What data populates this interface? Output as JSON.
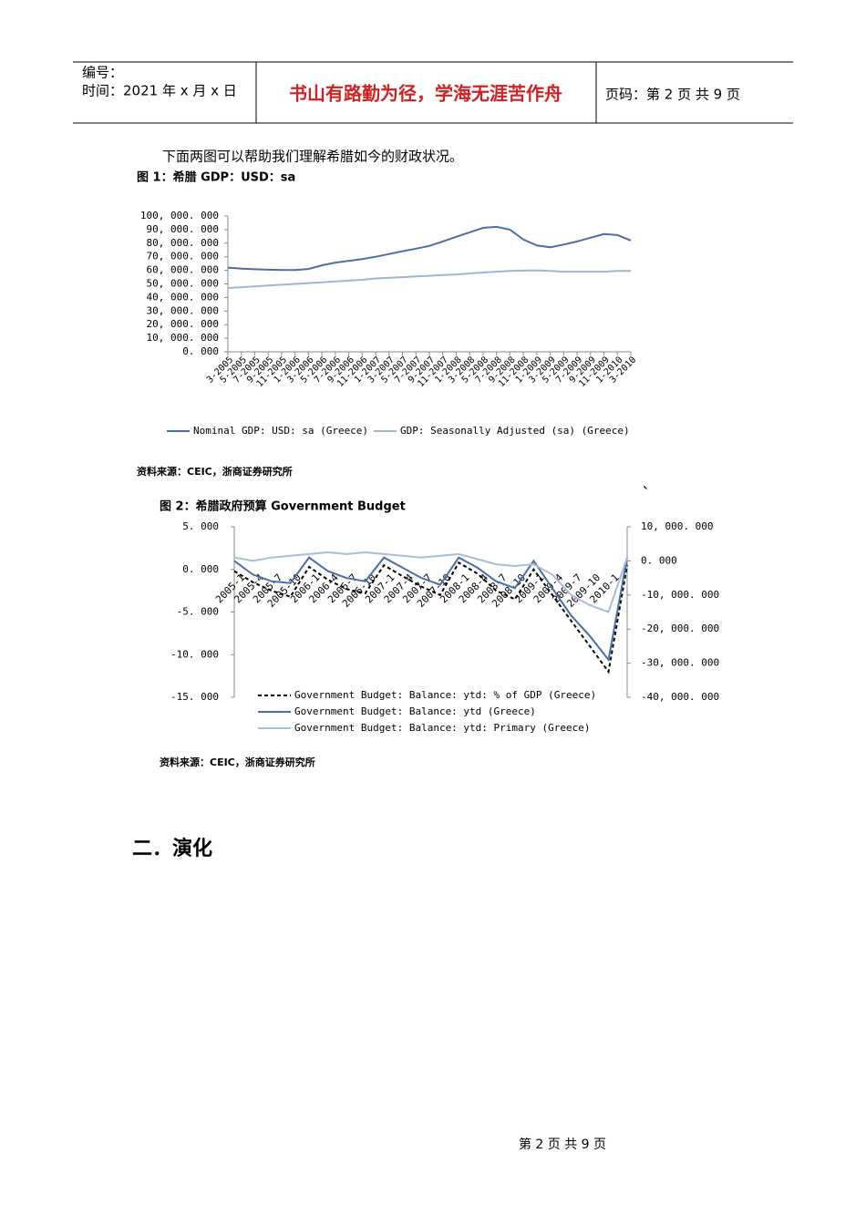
{
  "header": {
    "number": "编号：",
    "date": "时间：2021 年 x 月 x 日",
    "motto": "书山有路勤为径，学海无涯苦作舟",
    "page": "页码：第 2 页  共 9 页"
  },
  "intro": "下面两图可以帮助我们理解希腊如今的财政状况。",
  "mark": "、",
  "section_heading": "二．演化",
  "footer": "第 2 页 共 9 页",
  "chart_data": [
    {
      "type": "line",
      "title": "图 1：希腊 GDP：USD：sa",
      "source": "资料来源：CEIC，浙商证券研究所",
      "categories": [
        "3-2005",
        "5-2005",
        "7-2005",
        "9-2005",
        "11-2005",
        "1-2006",
        "3-2006",
        "5-2006",
        "7-2006",
        "9-2006",
        "11-2006",
        "1-2007",
        "3-2007",
        "5-2007",
        "7-2007",
        "9-2007",
        "11-2007",
        "1-2008",
        "3-2008",
        "5-2008",
        "7-2008",
        "9-2008",
        "11-2008",
        "1-2009",
        "3-2009",
        "5-2009",
        "7-2009",
        "9-2009",
        "11-2009",
        "1-2010",
        "3-2010"
      ],
      "series": [
        {
          "name": "Nominal GDP: USD: sa (Greece)",
          "color": "#4a6fa5",
          "values": [
            62000000,
            61300000,
            60800000,
            60500000,
            60200000,
            60300000,
            61000000,
            63700000,
            65700000,
            67000000,
            68300000,
            70000000,
            72000000,
            74000000,
            76000000,
            78000000,
            81300000,
            84700000,
            88000000,
            91300000,
            92000000,
            90000000,
            82700000,
            78300000,
            77000000,
            79000000,
            81300000,
            84000000,
            86700000,
            86000000,
            82000000
          ]
        },
        {
          "name": "GDP: Seasonally Adjusted (sa) (Greece)",
          "color": "#9fb4d6",
          "values": [
            47000000,
            47600000,
            48200000,
            48800000,
            49400000,
            50000000,
            50600000,
            51200000,
            51800000,
            52400000,
            53000000,
            54000000,
            54500000,
            55000000,
            55500000,
            56000000,
            56500000,
            57000000,
            57700000,
            58400000,
            59000000,
            59500000,
            59800000,
            60000000,
            59500000,
            59000000,
            59000000,
            59000000,
            59000000,
            59500000,
            59500000
          ]
        }
      ],
      "ylim": [
        0,
        100000000
      ],
      "yticks": [
        {
          "value": 0,
          "label": "0. 000"
        },
        {
          "value": 10000000,
          "label": "10, 000. 000"
        },
        {
          "value": 20000000,
          "label": "20, 000. 000"
        },
        {
          "value": 30000000,
          "label": "30, 000. 000"
        },
        {
          "value": 40000000,
          "label": "40, 000. 000"
        },
        {
          "value": 50000000,
          "label": "50, 000. 000"
        },
        {
          "value": 60000000,
          "label": "60, 000. 000"
        },
        {
          "value": 70000000,
          "label": "70, 000. 000"
        },
        {
          "value": 80000000,
          "label": "80, 000. 000"
        },
        {
          "value": 90000000,
          "label": "90, 000. 000"
        },
        {
          "value": 100000000,
          "label": "100, 000. 000"
        }
      ],
      "grid": false
    },
    {
      "type": "line",
      "title": "图 2：希腊政府预算 Government Budget",
      "source": "资料来源：CEIC，浙商证券研究所",
      "categories": [
        "2005-1",
        "2005-4",
        "2005-7",
        "2005-10",
        "2006-1",
        "2006-4",
        "2006-7",
        "2006-10",
        "2007-1",
        "2007-4",
        "2007-7",
        "2007-10",
        "2008-1",
        "2008-4",
        "2008-7",
        "2008-10",
        "2009-1",
        "2009-4",
        "2009-7",
        "2009-10",
        "2010-1",
        null
      ],
      "series": [
        {
          "name": "Government Budget: Balance: ytd: % of GDP (Greece)",
          "color": "#000000",
          "line_style": "dashed",
          "values": [
            -0.2,
            -1.5,
            -2.5,
            -3.2,
            0.3,
            -1.2,
            -2.3,
            -2.8,
            0.5,
            -0.8,
            -2.0,
            -3.0,
            0.8,
            -0.5,
            -2.5,
            -3.5,
            0.0,
            -3.0,
            -6.0,
            -9.0,
            -12.0,
            0.5
          ]
        },
        {
          "name": "Government Budget: Balance: ytd (Greece)",
          "color": "#4a6fa5",
          "axis": "y2",
          "values": [
            0,
            -4000000,
            -6000000,
            -6500000,
            1000000,
            -3000000,
            -5000000,
            -6000000,
            1000000,
            -2000000,
            -5000000,
            -7000000,
            1000000,
            -2000000,
            -6000000,
            -8000000,
            0,
            -8000000,
            -16000000,
            -22000000,
            -29000000,
            1000000
          ]
        },
        {
          "name": "Government Budget: Balance: ytd: Primary (Greece)",
          "color": "#a9bcdc",
          "axis": "y2",
          "values": [
            1000000,
            0,
            1000000,
            1500000,
            2000000,
            2500000,
            2000000,
            2500000,
            2000000,
            1500000,
            1000000,
            1500000,
            2000000,
            500000,
            -1000000,
            -1500000,
            -1000000,
            -4000000,
            -10000000,
            -13000000,
            -15000000,
            1000000
          ]
        }
      ],
      "ylim": [
        -15,
        5
      ],
      "yticks": [
        {
          "value": -15,
          "label": "-15. 000"
        },
        {
          "value": -10,
          "label": "-10. 000"
        },
        {
          "value": -5,
          "label": "-5. 000"
        },
        {
          "value": 0,
          "label": "0. 000"
        },
        {
          "value": 5,
          "label": "5. 000"
        }
      ],
      "y2lim": [
        -40000000,
        10000000
      ],
      "y2ticks": [
        {
          "value": -40000000,
          "label": "-40, 000. 000"
        },
        {
          "value": -30000000,
          "label": "-30, 000. 000"
        },
        {
          "value": -20000000,
          "label": "-20, 000. 000"
        },
        {
          "value": -10000000,
          "label": "-10, 000. 000"
        },
        {
          "value": 0,
          "label": "0. 000"
        },
        {
          "value": 10000000,
          "label": "10, 000. 000"
        }
      ],
      "grid": false
    }
  ]
}
